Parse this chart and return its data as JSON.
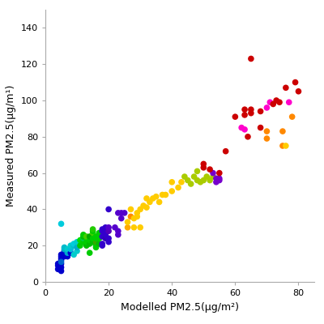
{
  "xlabel": "Modelled PM2.5(μg/m²)",
  "ylabel": "Measured PM2.5(μg/m¹)",
  "xlim": [
    0,
    85
  ],
  "ylim": [
    0,
    150
  ],
  "xticks": [
    0,
    20,
    40,
    60,
    80
  ],
  "yticks": [
    0,
    20,
    40,
    60,
    80,
    100,
    120,
    140
  ],
  "marker_size": 30,
  "background": "#ffffff",
  "points": [
    [
      4,
      7,
      "#0000cc"
    ],
    [
      4,
      9,
      "#0000cc"
    ],
    [
      4,
      10,
      "#0000cc"
    ],
    [
      5,
      10,
      "#0000cc"
    ],
    [
      5,
      12,
      "#0000cc"
    ],
    [
      5,
      13,
      "#0000cc"
    ],
    [
      5,
      14,
      "#0000cc"
    ],
    [
      5,
      15,
      "#0000cc"
    ],
    [
      5,
      8,
      "#0000cc"
    ],
    [
      5,
      6,
      "#0000cc"
    ],
    [
      5,
      11,
      "#0066cc"
    ],
    [
      5,
      32,
      "#00ccdd"
    ],
    [
      6,
      14,
      "#0000cc"
    ],
    [
      6,
      15,
      "#0000cc"
    ],
    [
      6,
      16,
      "#0000cc"
    ],
    [
      6,
      17,
      "#0000cc"
    ],
    [
      6,
      18,
      "#00aacc"
    ],
    [
      6,
      19,
      "#00bbcc"
    ],
    [
      7,
      14,
      "#0000cc"
    ],
    [
      7,
      15,
      "#0000cc"
    ],
    [
      7,
      16,
      "#00aacc"
    ],
    [
      7,
      18,
      "#00cccc"
    ],
    [
      8,
      16,
      "#0000cc"
    ],
    [
      8,
      18,
      "#00bbdd"
    ],
    [
      8,
      20,
      "#00cccc"
    ],
    [
      9,
      15,
      "#00cccc"
    ],
    [
      9,
      20,
      "#00bbcc"
    ],
    [
      9,
      21,
      "#00ccdd"
    ],
    [
      10,
      17,
      "#00cccc"
    ],
    [
      10,
      19,
      "#00aacc"
    ],
    [
      10,
      22,
      "#00cccc"
    ],
    [
      11,
      20,
      "#00cc00"
    ],
    [
      11,
      23,
      "#00dd00"
    ],
    [
      12,
      22,
      "#00cc00"
    ],
    [
      12,
      24,
      "#00cc44"
    ],
    [
      12,
      25,
      "#00bb00"
    ],
    [
      12,
      26,
      "#00cc00"
    ],
    [
      13,
      20,
      "#00bb00"
    ],
    [
      13,
      22,
      "#00cc00"
    ],
    [
      13,
      25,
      "#44cc00"
    ],
    [
      14,
      16,
      "#00cc00"
    ],
    [
      14,
      21,
      "#00bb00"
    ],
    [
      14,
      23,
      "#00cc00"
    ],
    [
      14,
      25,
      "#00aa00"
    ],
    [
      15,
      22,
      "#00bb00"
    ],
    [
      15,
      24,
      "#00cc00"
    ],
    [
      15,
      27,
      "#44cc00"
    ],
    [
      15,
      28,
      "#00cc00"
    ],
    [
      15,
      29,
      "#22cc00"
    ],
    [
      16,
      19,
      "#00cc00"
    ],
    [
      16,
      20,
      "#00cc00"
    ],
    [
      16,
      22,
      "#33aa00"
    ],
    [
      16,
      24,
      "#00cc00"
    ],
    [
      16,
      25,
      "#00cc00"
    ],
    [
      17,
      21,
      "#00bb00"
    ],
    [
      17,
      24,
      "#00cc00"
    ],
    [
      17,
      27,
      "#00cc00"
    ],
    [
      18,
      20,
      "#3300cc"
    ],
    [
      18,
      21,
      "#3300cc"
    ],
    [
      18,
      25,
      "#3300cc"
    ],
    [
      18,
      28,
      "#3300cc"
    ],
    [
      18,
      29,
      "#3300cc"
    ],
    [
      19,
      24,
      "#3300bb"
    ],
    [
      19,
      26,
      "#3300cc"
    ],
    [
      19,
      27,
      "#3300cc"
    ],
    [
      19,
      30,
      "#3300cc"
    ],
    [
      20,
      22,
      "#3300cc"
    ],
    [
      20,
      24,
      "#3300cc"
    ],
    [
      20,
      28,
      "#5500bb"
    ],
    [
      20,
      30,
      "#5500cc"
    ],
    [
      20,
      40,
      "#3300cc"
    ],
    [
      22,
      30,
      "#5500cc"
    ],
    [
      23,
      26,
      "#5500cc"
    ],
    [
      23,
      28,
      "#5500cc"
    ],
    [
      23,
      38,
      "#5500cc"
    ],
    [
      24,
      35,
      "#5500cc"
    ],
    [
      24,
      38,
      "#5500cc"
    ],
    [
      25,
      38,
      "#5500cc"
    ],
    [
      26,
      30,
      "#ffaa00"
    ],
    [
      26,
      33,
      "#ffcc00"
    ],
    [
      27,
      36,
      "#ff8800"
    ],
    [
      27,
      40,
      "#ffcc00"
    ],
    [
      28,
      30,
      "#ffcc00"
    ],
    [
      28,
      35,
      "#ffcc00"
    ],
    [
      29,
      36,
      "#ffcc00"
    ],
    [
      29,
      38,
      "#ffcc00"
    ],
    [
      30,
      30,
      "#ffcc00"
    ],
    [
      30,
      40,
      "#ffcc00"
    ],
    [
      31,
      42,
      "#ffcc00"
    ],
    [
      32,
      41,
      "#ffcc00"
    ],
    [
      32,
      46,
      "#ffcc00"
    ],
    [
      33,
      44,
      "#ffcc00"
    ],
    [
      34,
      46,
      "#ffcc00"
    ],
    [
      35,
      47,
      "#ffcc00"
    ],
    [
      36,
      44,
      "#ffcc00"
    ],
    [
      37,
      48,
      "#ffcc00"
    ],
    [
      38,
      48,
      "#ffcc00"
    ],
    [
      40,
      50,
      "#ffcc00"
    ],
    [
      40,
      55,
      "#ffcc00"
    ],
    [
      42,
      52,
      "#ffcc00"
    ],
    [
      43,
      55,
      "#ffcc00"
    ],
    [
      44,
      58,
      "#aacc00"
    ],
    [
      45,
      56,
      "#aacc00"
    ],
    [
      46,
      54,
      "#aacc00"
    ],
    [
      47,
      58,
      "#aacc00"
    ],
    [
      48,
      56,
      "#aacc00"
    ],
    [
      48,
      61,
      "#aacc00"
    ],
    [
      49,
      55,
      "#aacc00"
    ],
    [
      50,
      56,
      "#aacc00"
    ],
    [
      51,
      58,
      "#aacc00"
    ],
    [
      52,
      56,
      "#aacc00"
    ],
    [
      53,
      58,
      "#aacc00"
    ],
    [
      53,
      60,
      "#7700cc"
    ],
    [
      54,
      55,
      "#7700cc"
    ],
    [
      54,
      57,
      "#7700cc"
    ],
    [
      55,
      56,
      "#7700cc"
    ],
    [
      55,
      57,
      "#7700cc"
    ],
    [
      50,
      63,
      "#cc0000"
    ],
    [
      50,
      65,
      "#cc0000"
    ],
    [
      52,
      62,
      "#cc0000"
    ],
    [
      55,
      60,
      "#cc0000"
    ],
    [
      57,
      72,
      "#cc0000"
    ],
    [
      60,
      91,
      "#cc0000"
    ],
    [
      62,
      85,
      "#ff00cc"
    ],
    [
      63,
      84,
      "#ff00cc"
    ],
    [
      63,
      92,
      "#cc0000"
    ],
    [
      63,
      95,
      "#cc0000"
    ],
    [
      64,
      80,
      "#cc0000"
    ],
    [
      65,
      93,
      "#cc0000"
    ],
    [
      65,
      95,
      "#cc0000"
    ],
    [
      65,
      123,
      "#cc0000"
    ],
    [
      68,
      85,
      "#cc0000"
    ],
    [
      68,
      94,
      "#cc0000"
    ],
    [
      70,
      79,
      "#ff8800"
    ],
    [
      70,
      83,
      "#ff8800"
    ],
    [
      70,
      96,
      "#ff00cc"
    ],
    [
      71,
      99,
      "#ff00cc"
    ],
    [
      72,
      98,
      "#cc0000"
    ],
    [
      73,
      100,
      "#cc0000"
    ],
    [
      74,
      99,
      "#cc0000"
    ],
    [
      75,
      75,
      "#ff8800"
    ],
    [
      75,
      83,
      "#ff8800"
    ],
    [
      76,
      75,
      "#ffcc00"
    ],
    [
      76,
      107,
      "#cc0000"
    ],
    [
      77,
      99,
      "#ff00cc"
    ],
    [
      78,
      91,
      "#ff8800"
    ],
    [
      79,
      110,
      "#cc0000"
    ],
    [
      80,
      105,
      "#cc0000"
    ]
  ]
}
